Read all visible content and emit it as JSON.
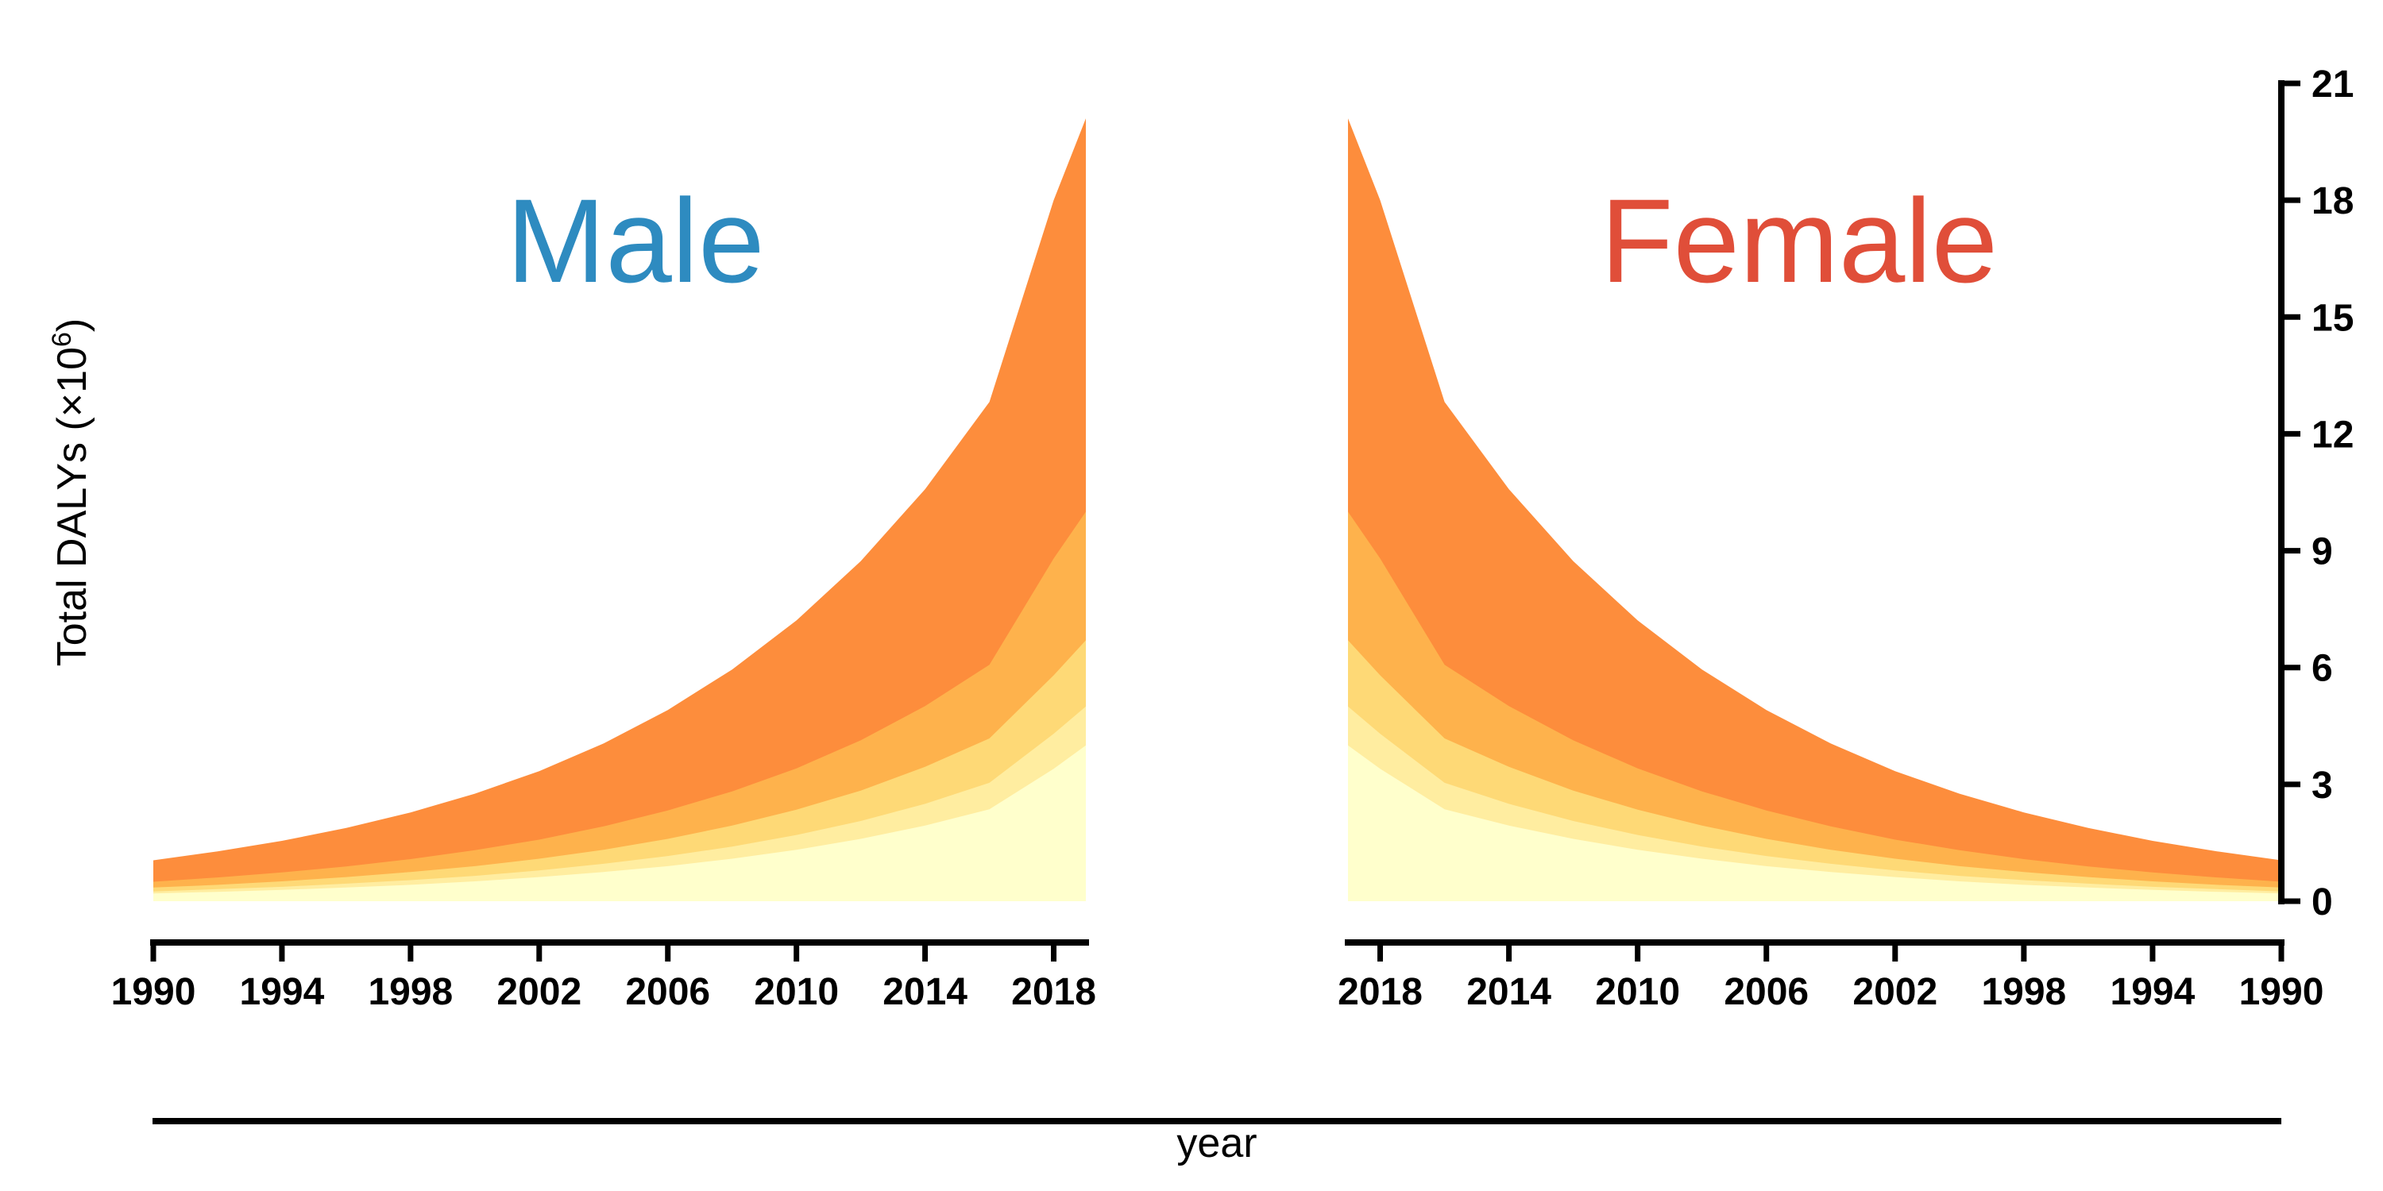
{
  "chart_data": {
    "type": "area",
    "ylabel": "Total DALYs (×10",
    "ylabel_exp": "6",
    "ylabel_close": ")",
    "xlabel": "year",
    "ylim": [
      0,
      21
    ],
    "yticks": [
      0,
      3,
      6,
      9,
      12,
      15,
      18,
      21
    ],
    "xlim": [
      1990,
      2019
    ],
    "xticks": [
      1990,
      1994,
      1998,
      2002,
      2006,
      2010,
      2014,
      2018
    ],
    "x": [
      1990,
      1992,
      1994,
      1996,
      1998,
      2000,
      2002,
      2004,
      2006,
      2008,
      2010,
      2012,
      2014,
      2016,
      2018,
      2019
    ],
    "layer_colors": [
      "#ffffcc",
      "#ffeda0",
      "#fed976",
      "#feb24c",
      "#fd8d3c"
    ],
    "panels": [
      {
        "title": "Male",
        "title_color": "#2e8bc0",
        "direction": "forward",
        "series": [
          {
            "values": [
              0.2,
              0.24,
              0.29,
              0.35,
              0.42,
              0.51,
              0.62,
              0.75,
              0.9,
              1.09,
              1.32,
              1.6,
              1.94,
              2.36,
              3.4,
              4.0
            ]
          },
          {
            "values": [
              0.25,
              0.31,
              0.37,
              0.45,
              0.54,
              0.65,
              0.79,
              0.96,
              1.16,
              1.4,
              1.7,
              2.06,
              2.5,
              3.04,
              4.3,
              5.0
            ]
          },
          {
            "values": [
              0.35,
              0.42,
              0.51,
              0.62,
              0.75,
              0.9,
              1.09,
              1.32,
              1.6,
              1.94,
              2.35,
              2.84,
              3.45,
              4.18,
              5.8,
              6.7
            ]
          },
          {
            "values": [
              0.5,
              0.61,
              0.74,
              0.89,
              1.08,
              1.31,
              1.58,
              1.92,
              2.33,
              2.82,
              3.41,
              4.13,
              5.01,
              6.07,
              8.8,
              10.0
            ]
          },
          {
            "values": [
              1.05,
              1.28,
              1.55,
              1.88,
              2.28,
              2.76,
              3.34,
              4.05,
              4.91,
              5.95,
              7.21,
              8.73,
              10.58,
              12.82,
              18.0,
              20.1
            ]
          }
        ]
      },
      {
        "title": "Female",
        "title_color": "#e04e39",
        "direction": "reverse",
        "series": [
          {
            "values": [
              0.2,
              0.24,
              0.29,
              0.35,
              0.42,
              0.51,
              0.62,
              0.75,
              0.9,
              1.09,
              1.32,
              1.6,
              1.94,
              2.36,
              3.4,
              4.0
            ]
          },
          {
            "values": [
              0.25,
              0.31,
              0.37,
              0.45,
              0.54,
              0.65,
              0.79,
              0.96,
              1.16,
              1.4,
              1.7,
              2.06,
              2.5,
              3.04,
              4.3,
              5.0
            ]
          },
          {
            "values": [
              0.35,
              0.42,
              0.51,
              0.62,
              0.75,
              0.9,
              1.09,
              1.32,
              1.6,
              1.94,
              2.35,
              2.84,
              3.45,
              4.18,
              5.8,
              6.7
            ]
          },
          {
            "values": [
              0.5,
              0.61,
              0.74,
              0.89,
              1.08,
              1.31,
              1.58,
              1.92,
              2.33,
              2.82,
              3.41,
              4.13,
              5.01,
              6.07,
              8.8,
              10.0
            ]
          },
          {
            "values": [
              1.05,
              1.28,
              1.55,
              1.88,
              2.28,
              2.76,
              3.34,
              4.05,
              4.91,
              5.95,
              7.21,
              8.73,
              10.58,
              12.82,
              18.0,
              20.1
            ]
          }
        ]
      }
    ]
  }
}
